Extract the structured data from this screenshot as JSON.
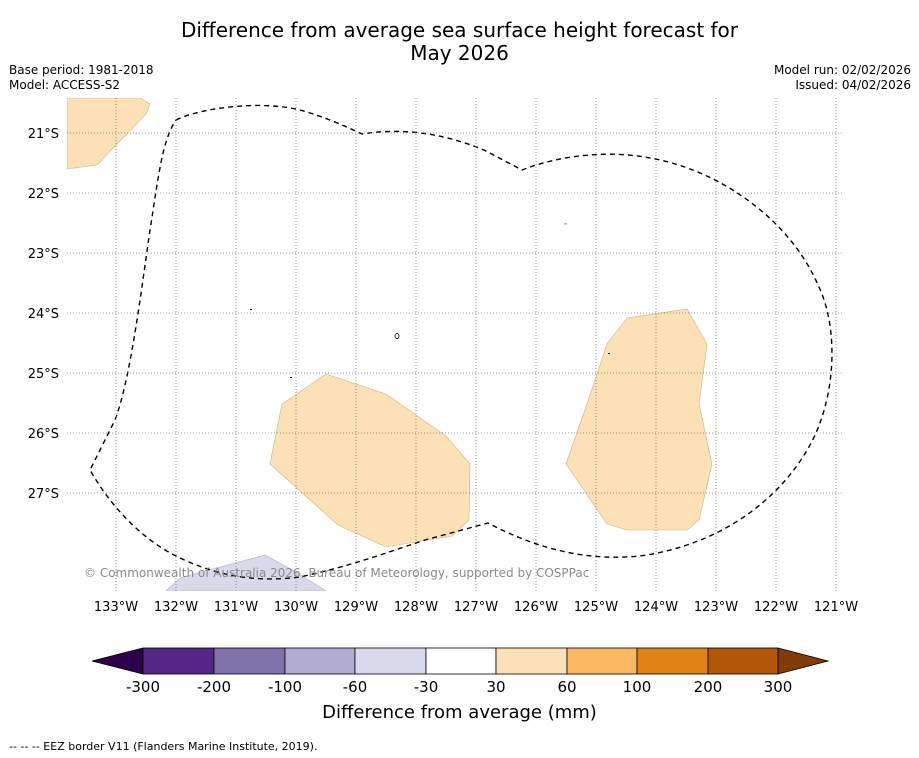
{
  "header": {
    "title_line1": "Difference from average sea surface height forecast for",
    "title_line2": "May 2026",
    "base_period": "Base period: 1981-2018",
    "model": "Model: ACCESS-S2",
    "model_run": "Model run: 02/02/2026",
    "issued": "Issued: 04/02/2026"
  },
  "map": {
    "lon_labels": [
      "133°W",
      "132°W",
      "131°W",
      "130°W",
      "129°W",
      "128°W",
      "127°W",
      "126°W",
      "125°W",
      "124°W",
      "123°W",
      "122°W",
      "121°W"
    ],
    "lat_labels": [
      "21°S",
      "22°S",
      "23°S",
      "24°S",
      "25°S",
      "26°S",
      "27°S"
    ],
    "copyright": "© Commonwealth of Australia 2026, Bureau of Meteorology, supported by COSPPac"
  },
  "colorbar": {
    "title": "Difference from average (mm)",
    "tick_labels": [
      "-300",
      "-200",
      "-100",
      "-60",
      "-30",
      "30",
      "60",
      "100",
      "200",
      "300"
    ],
    "colors": [
      "#2d004b",
      "#542788",
      "#8073ac",
      "#b2abd2",
      "#d8daeb",
      "#ffffff",
      "#fee0b6",
      "#fdb863",
      "#e08214",
      "#b35806",
      "#7f3b08"
    ]
  },
  "legend": {
    "eez_label": "-- -- -- EEZ border V11 (Flanders Marine Institute, 2019)."
  }
}
